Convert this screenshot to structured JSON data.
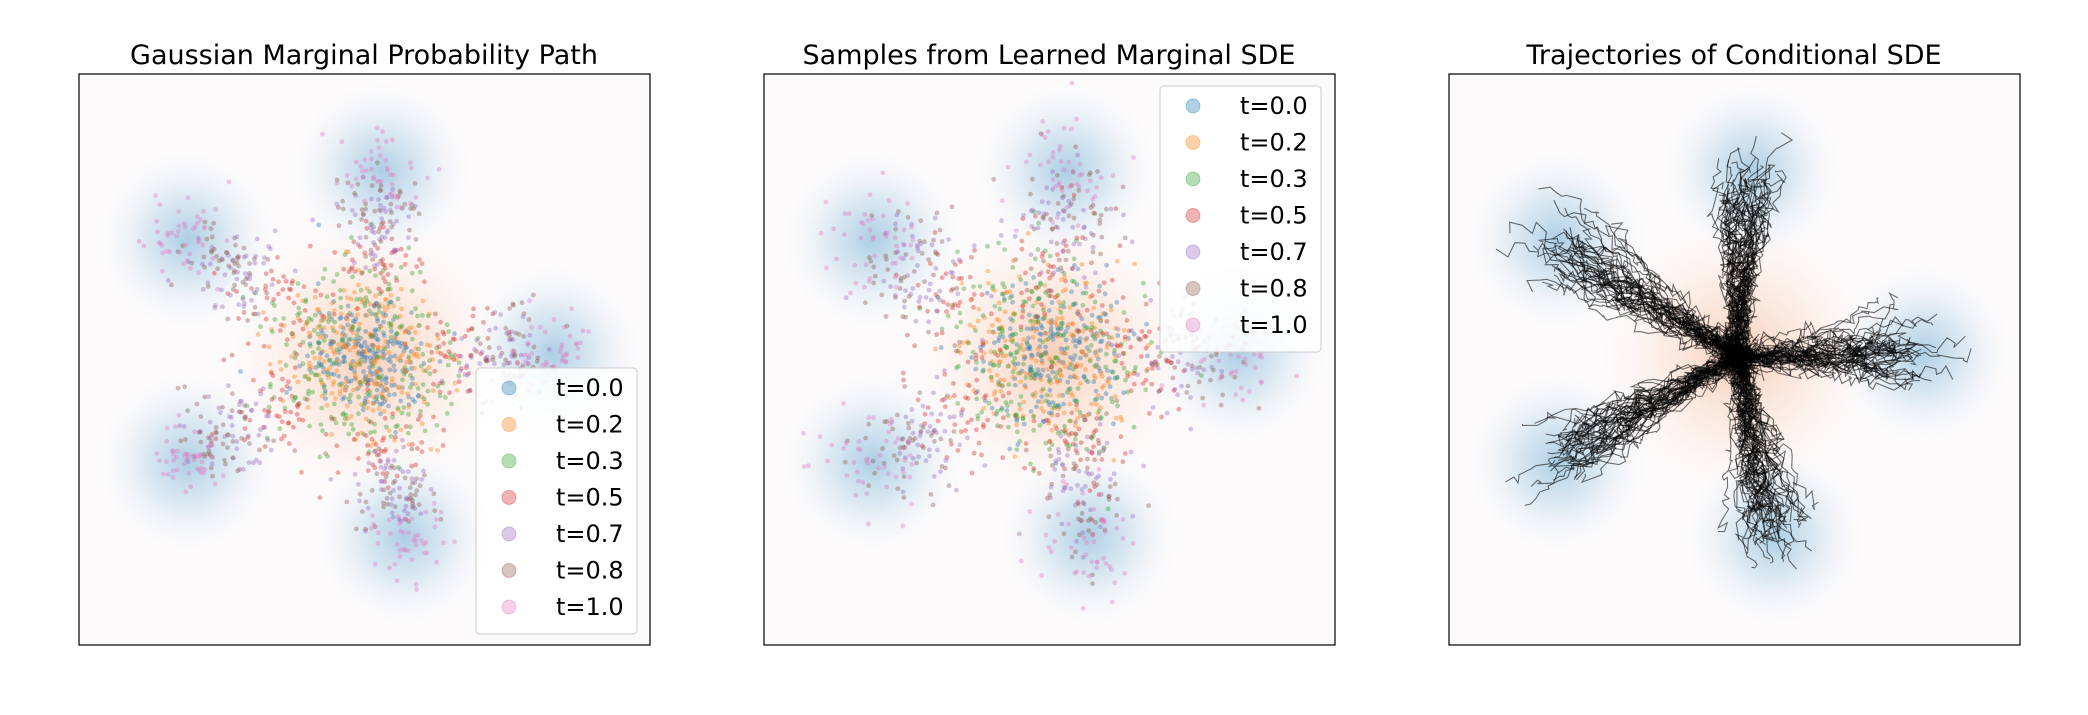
{
  "chart_data": [
    {
      "type": "scatter",
      "title": "Gaussian Marginal Probability Path",
      "xlabel": "",
      "ylabel": "",
      "axis_ticks": false,
      "grid": false,
      "legend_position": "lower-right",
      "background": "target density (5 gaussian modes, blue) over source density (orange)",
      "target_modes": [
        [
          0.35,
          0.72
        ],
        [
          0.82,
          0.5
        ],
        [
          0.55,
          0.19
        ],
        [
          0.05,
          0.3
        ],
        [
          0.0,
          0.73
        ]
      ],
      "source_center": [
        0.0,
        0.0
      ],
      "series": [
        {
          "name": "t=0.0",
          "t": 0.0,
          "color": "#1f77b4"
        },
        {
          "name": "t=0.2",
          "t": 0.2,
          "color": "#ff7f0e"
        },
        {
          "name": "t=0.3",
          "t": 0.3,
          "color": "#2ca02c"
        },
        {
          "name": "t=0.5",
          "t": 0.5,
          "color": "#d62728"
        },
        {
          "name": "t=0.7",
          "t": 0.7,
          "color": "#9467bd"
        },
        {
          "name": "t=0.8",
          "t": 0.8,
          "color": "#8c564b"
        },
        {
          "name": "t=1.0",
          "t": 1.0,
          "color": "#e377c2"
        }
      ]
    },
    {
      "type": "scatter",
      "title": "Samples from Learned Marginal SDE",
      "xlabel": "",
      "ylabel": "",
      "axis_ticks": false,
      "grid": false,
      "legend_position": "upper-right",
      "series": [
        {
          "name": "t=0.0",
          "t": 0.0,
          "color": "#1f77b4"
        },
        {
          "name": "t=0.2",
          "t": 0.2,
          "color": "#ff7f0e"
        },
        {
          "name": "t=0.3",
          "t": 0.3,
          "color": "#2ca02c"
        },
        {
          "name": "t=0.5",
          "t": 0.5,
          "color": "#d62728"
        },
        {
          "name": "t=0.7",
          "t": 0.7,
          "color": "#9467bd"
        },
        {
          "name": "t=0.8",
          "t": 0.8,
          "color": "#8c564b"
        },
        {
          "name": "t=1.0",
          "t": 1.0,
          "color": "#e377c2"
        }
      ]
    },
    {
      "type": "line",
      "title": "Trajectories of Conditional SDE",
      "xlabel": "",
      "ylabel": "",
      "axis_ticks": false,
      "grid": false,
      "trajectory_color": "#000000",
      "description_visible": "many black trajectories from center to five modes"
    }
  ]
}
